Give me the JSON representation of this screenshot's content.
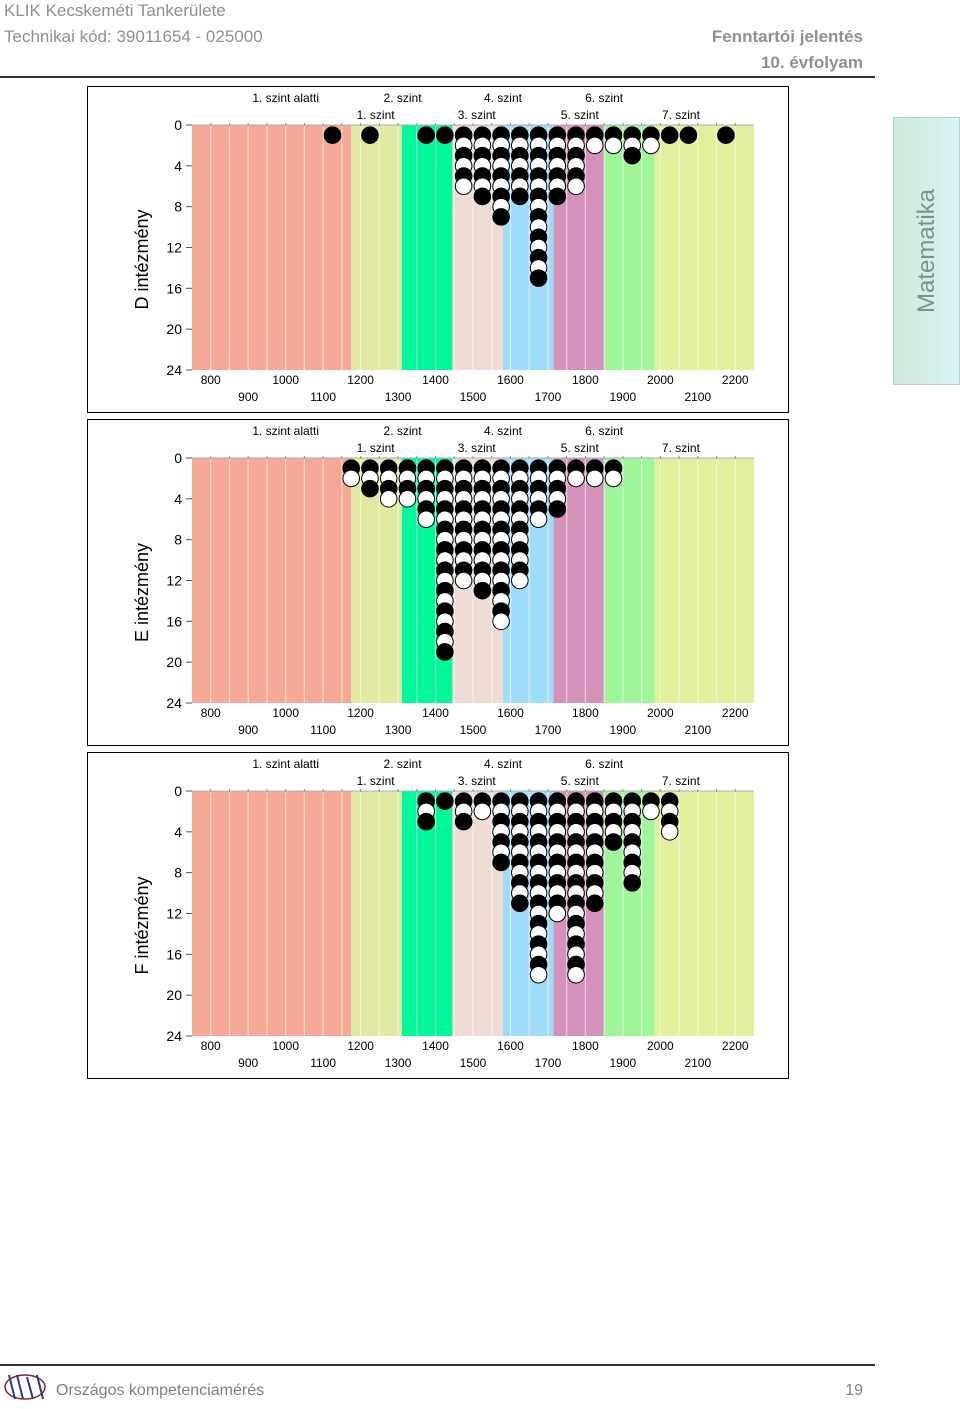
{
  "header": {
    "org": "KLIK Kecskeméti Tankerülete",
    "code": "Technikai kód: 39011654  - 025000",
    "report": "Fenntartói jelentés",
    "grade": "10. évfolyam"
  },
  "side_tab": "Matematika",
  "footer": {
    "text": "Országos kompetenciamérés",
    "page": "19"
  },
  "colors": {
    "below1": "#f5a896",
    "lvl1": "#e1e9a2",
    "lvl2": "#00f79a",
    "lvl3": "#eedbd3",
    "lvl4": "#9fdcfa",
    "lvl5": "#d492bb",
    "lvl6": "#9ff59a",
    "lvl7": "#e1f09c"
  },
  "chart_data": [
    {
      "type": "scatter",
      "ylabel": "D intézmény",
      "ylim": [
        0,
        24
      ],
      "yticks": [
        "0",
        "4",
        "8",
        "12",
        "16",
        "20",
        "24"
      ],
      "xlim": [
        750,
        2250
      ],
      "xticks_top": [
        "800",
        "1000",
        "1200",
        "1400",
        "1600",
        "1800",
        "2000",
        "2200"
      ],
      "xticks_bottom": [
        "900",
        "1100",
        "1300",
        "1500",
        "1700",
        "1900",
        "2100"
      ],
      "levels_top": [
        "1. szint alatti",
        "2. szint",
        "4. szint",
        "6. szint"
      ],
      "levels_bottom": [
        "1. szint",
        "3. szint",
        "5. szint",
        "7. szint"
      ],
      "columns": [
        {
          "x": 1125,
          "dots": "B"
        },
        {
          "x": 1225,
          "dots": "B"
        },
        {
          "x": 1375,
          "dots": "B"
        },
        {
          "x": 1425,
          "dots": "B"
        },
        {
          "x": 1475,
          "dots": "BWBWBW"
        },
        {
          "x": 1525,
          "dots": "BWBWBWB"
        },
        {
          "x": 1575,
          "dots": "BWBWBWBWB"
        },
        {
          "x": 1625,
          "dots": "BWBWBWB"
        },
        {
          "x": 1675,
          "dots": "BWBWBWBWBWBWBWB"
        },
        {
          "x": 1725,
          "dots": "BWBWBWB"
        },
        {
          "x": 1775,
          "dots": "BWBWBW"
        },
        {
          "x": 1825,
          "dots": "BW"
        },
        {
          "x": 1875,
          "dots": "BW"
        },
        {
          "x": 1925,
          "dots": "BWB"
        },
        {
          "x": 1975,
          "dots": "BW"
        },
        {
          "x": 2025,
          "dots": "B"
        },
        {
          "x": 2075,
          "dots": "B"
        },
        {
          "x": 2175,
          "dots": "B"
        }
      ]
    },
    {
      "type": "scatter",
      "ylabel": "E intézmény",
      "ylim": [
        0,
        24
      ],
      "yticks": [
        "0",
        "4",
        "8",
        "12",
        "16",
        "20",
        "24"
      ],
      "xlim": [
        750,
        2250
      ],
      "xticks_top": [
        "800",
        "1000",
        "1200",
        "1400",
        "1600",
        "1800",
        "2000",
        "2200"
      ],
      "xticks_bottom": [
        "900",
        "1100",
        "1300",
        "1500",
        "1700",
        "1900",
        "2100"
      ],
      "levels_top": [
        "1. szint alatti",
        "2. szint",
        "4. szint",
        "6. szint"
      ],
      "levels_bottom": [
        "1. szint",
        "3. szint",
        "5. szint",
        "7. szint"
      ],
      "columns": [
        {
          "x": 1175,
          "dots": "BW"
        },
        {
          "x": 1225,
          "dots": "BWB"
        },
        {
          "x": 1275,
          "dots": "BWBW"
        },
        {
          "x": 1325,
          "dots": "BWBW"
        },
        {
          "x": 1375,
          "dots": "BWBWBW"
        },
        {
          "x": 1425,
          "dots": "BWBWBWBWBWBWBWBWBWB"
        },
        {
          "x": 1475,
          "dots": "BWBWBWBWBWBW"
        },
        {
          "x": 1525,
          "dots": "BWBWBWBWBWBWB"
        },
        {
          "x": 1575,
          "dots": "BWBWBWBWBWBWBWBW"
        },
        {
          "x": 1625,
          "dots": "BWBWBWBWBWBW"
        },
        {
          "x": 1675,
          "dots": "BWBWBW"
        },
        {
          "x": 1725,
          "dots": "BWBWB"
        },
        {
          "x": 1775,
          "dots": "BW"
        },
        {
          "x": 1825,
          "dots": "BW"
        },
        {
          "x": 1875,
          "dots": "BW"
        }
      ]
    },
    {
      "type": "scatter",
      "ylabel": "F intézmény",
      "ylim": [
        0,
        24
      ],
      "yticks": [
        "0",
        "4",
        "8",
        "12",
        "16",
        "20",
        "24"
      ],
      "xlim": [
        750,
        2250
      ],
      "xticks_top": [
        "800",
        "1000",
        "1200",
        "1400",
        "1600",
        "1800",
        "2000",
        "2200"
      ],
      "xticks_bottom": [
        "900",
        "1100",
        "1300",
        "1500",
        "1700",
        "1900",
        "2100"
      ],
      "levels_top": [
        "1. szint alatti",
        "2. szint",
        "4. szint",
        "6. szint"
      ],
      "levels_bottom": [
        "1. szint",
        "3. szint",
        "5. szint",
        "7. szint"
      ],
      "columns": [
        {
          "x": 1375,
          "dots": "BWB"
        },
        {
          "x": 1425,
          "dots": "B"
        },
        {
          "x": 1475,
          "dots": "BWB"
        },
        {
          "x": 1525,
          "dots": "BW"
        },
        {
          "x": 1575,
          "dots": "BWBWBWB"
        },
        {
          "x": 1625,
          "dots": "BWBWBWBWBWB"
        },
        {
          "x": 1675,
          "dots": "BWBWBWBWBWBWBWBWBW"
        },
        {
          "x": 1725,
          "dots": "BWBWBWBWBWBW"
        },
        {
          "x": 1775,
          "dots": "BWBWBWBWBWBWBWBWBW"
        },
        {
          "x": 1825,
          "dots": "BWBWBWBWBWB"
        },
        {
          "x": 1875,
          "dots": "BWBWB"
        },
        {
          "x": 1925,
          "dots": "BWBWBWBWB"
        },
        {
          "x": 1975,
          "dots": "BW"
        },
        {
          "x": 2025,
          "dots": "BWBW"
        }
      ]
    }
  ]
}
